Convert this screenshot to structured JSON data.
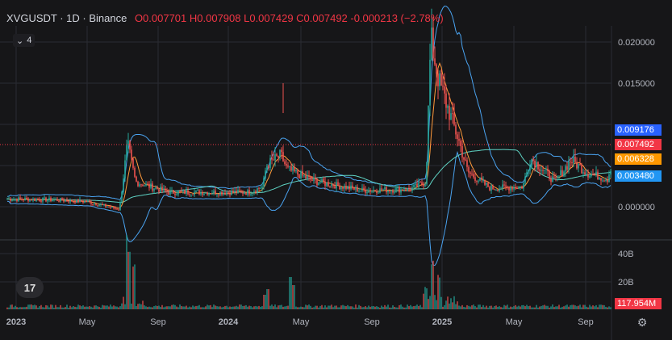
{
  "header": {
    "symbol": "XVGUSDT · 1D · Binance",
    "ohlc": "O0.007701 H0.007908 L0.007429 C0.007492 -0.000213 (−2.78%)"
  },
  "indicators_toggle": {
    "label": "4"
  },
  "logo": {
    "text": "17"
  },
  "price_axis": {
    "ticks": [
      "0.020000",
      "0.015000",
      "0.000000"
    ]
  },
  "volume_axis": {
    "ticks": [
      "40B",
      "20B"
    ]
  },
  "time_axis": {
    "ticks": [
      "2023",
      "May",
      "Sep",
      "2024",
      "May",
      "Sep",
      "2025",
      "May",
      "Sep"
    ]
  },
  "price_tags": [
    {
      "value": "0.009176",
      "color": "#2962ff"
    },
    {
      "value": "0.007492",
      "color": "#f23645"
    },
    {
      "value": "0.006328",
      "color": "#ff9800"
    },
    {
      "value": "0.003480",
      "color": "#2196f3"
    }
  ],
  "volume_tag": {
    "value": "117.954M",
    "color": "#f23645"
  },
  "colors": {
    "up": "#26a69a",
    "down": "#ef5350",
    "band": "#4aa3f0",
    "ma_long": "#5fd3c4",
    "ma_short": "#ff9a3c"
  },
  "chart_data": {
    "type": "line",
    "title": "",
    "x": [
      "2023-01",
      "2023-05",
      "2023-07",
      "2023-09",
      "2024-01",
      "2024-03",
      "2024-04",
      "2024-09",
      "2024-12",
      "2025-02",
      "2025-05",
      "2025-07",
      "2025-09",
      "2025-10"
    ],
    "series": [
      {
        "values": [
          0.0027,
          0.0016,
          0.0085,
          0.0034,
          0.0034,
          0.0062,
          0.0073,
          0.0036,
          0.0195,
          0.0085,
          0.0038,
          0.007,
          0.0048,
          0.0075
        ]
      }
    ],
    "ylim": [
      -0.001,
      0.021
    ]
  }
}
